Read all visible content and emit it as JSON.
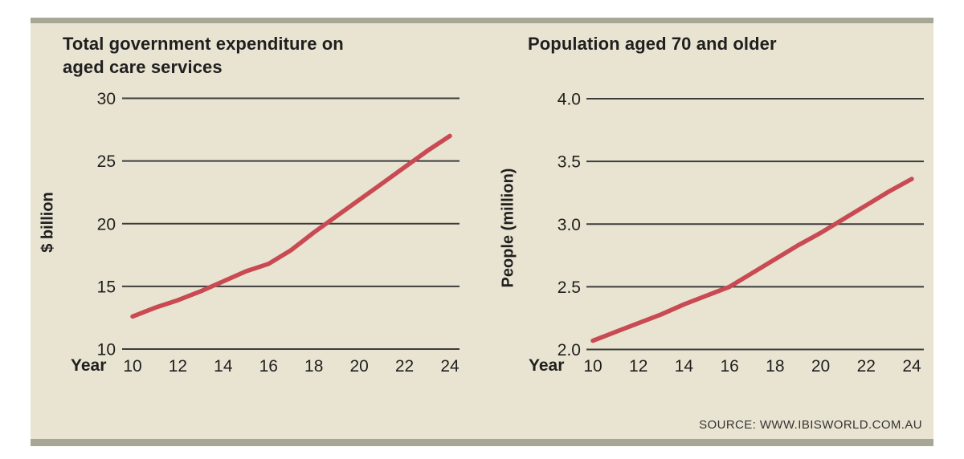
{
  "source": {
    "text": "SOURCE: WWW.IBISWORLD.COM.AU"
  },
  "colors": {
    "panel_background": "#e9e4d1",
    "panel_bar": "#a8a694",
    "gridline": "#3c3c3c",
    "text": "#1f1f1f",
    "data_line": "#c94a53"
  },
  "chart_data": [
    {
      "type": "line",
      "title": "Total government expenditure on aged care services",
      "title_lines": [
        "Total government expenditure on",
        "aged care services"
      ],
      "ylabel": "$ billion",
      "xlabel": "Year",
      "x": [
        10,
        11,
        12,
        13,
        14,
        15,
        16,
        17,
        18,
        19,
        20,
        21,
        22,
        23,
        24
      ],
      "values": [
        12.6,
        13.3,
        13.9,
        14.6,
        15.4,
        16.2,
        16.8,
        17.9,
        19.3,
        20.6,
        21.9,
        23.2,
        24.5,
        25.8,
        27.0
      ],
      "ylim": [
        10,
        30
      ],
      "ytick_values": [
        10,
        15,
        20,
        25,
        30
      ],
      "ytick_labels": [
        "10",
        "15",
        "20",
        "25",
        "30"
      ],
      "xtick_values": [
        10,
        12,
        14,
        16,
        18,
        20,
        22,
        24
      ],
      "xtick_labels": [
        "10",
        "12",
        "14",
        "16",
        "18",
        "20",
        "22",
        "24"
      ],
      "line_color": "#c94a53",
      "grid": true,
      "legend": "none"
    },
    {
      "type": "line",
      "title": "Population aged 70 and older",
      "title_lines": [
        "Population aged 70 and older"
      ],
      "ylabel": "People (million)",
      "xlabel": "Year",
      "x": [
        10,
        11,
        12,
        13,
        14,
        15,
        16,
        17,
        18,
        19,
        20,
        21,
        22,
        23,
        24
      ],
      "values": [
        2.07,
        2.14,
        2.21,
        2.28,
        2.36,
        2.43,
        2.5,
        2.61,
        2.72,
        2.83,
        2.93,
        3.04,
        3.15,
        3.26,
        3.36
      ],
      "ylim": [
        2.0,
        4.0
      ],
      "ytick_values": [
        2.0,
        2.5,
        3.0,
        3.5,
        4.0
      ],
      "ytick_labels": [
        "2.0",
        "2.5",
        "3.0",
        "3.5",
        "4.0"
      ],
      "xtick_values": [
        10,
        12,
        14,
        16,
        18,
        20,
        22,
        24
      ],
      "xtick_labels": [
        "10",
        "12",
        "14",
        "16",
        "18",
        "20",
        "22",
        "24"
      ],
      "line_color": "#c94a53",
      "grid": true,
      "legend": "none"
    }
  ]
}
